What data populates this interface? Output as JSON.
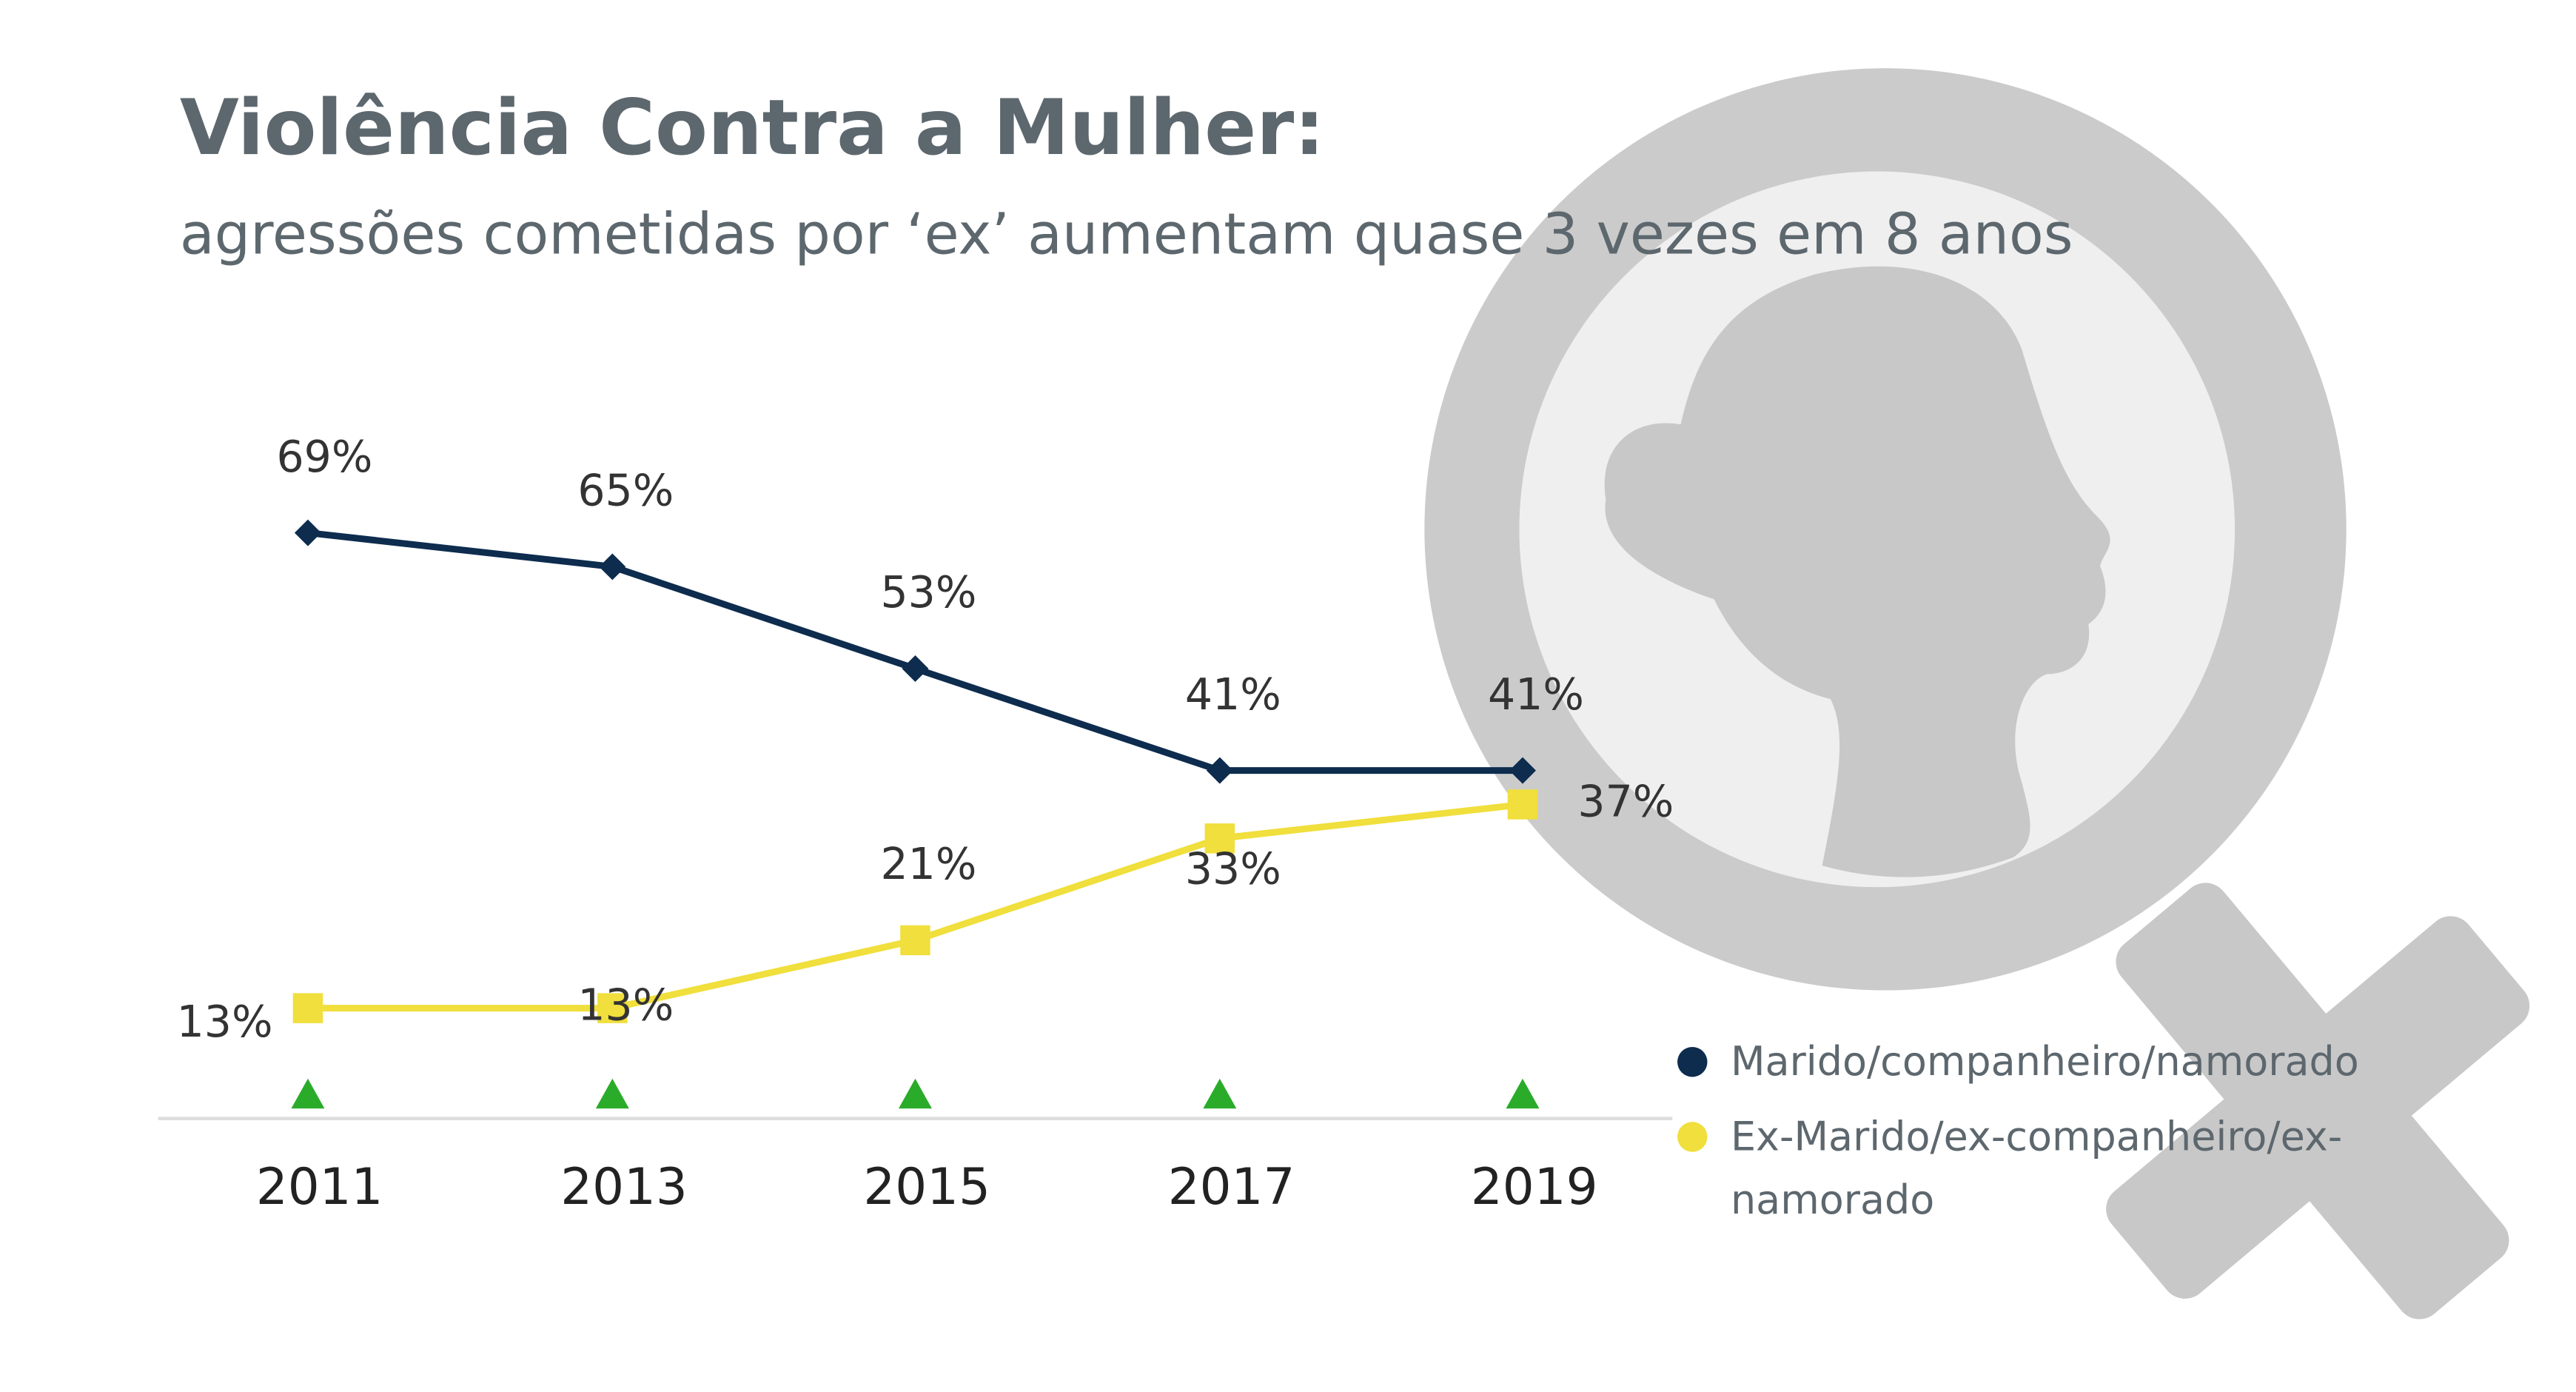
{
  "chart_data": {
    "type": "line",
    "title": "Violência Contra a Mulher:",
    "subtitle": "agressões cometidas por ‘ex’ aumentam quase 3 vezes em 8 anos",
    "categories": [
      "2011",
      "2013",
      "2015",
      "2017",
      "2019"
    ],
    "series": [
      {
        "name": "Marido/companheiro/namorado",
        "color": "#0d2c4e",
        "marker": "diamond",
        "values": [
          69,
          65,
          53,
          41,
          41
        ],
        "value_labels": [
          "69%",
          "65%",
          "53%",
          "41%",
          "41%"
        ]
      },
      {
        "name": "Ex-Marido/ex-companheiro/ex-namorado",
        "color": "#f0df3c",
        "marker": "square",
        "values": [
          13,
          13,
          21,
          33,
          37
        ],
        "value_labels": [
          "13%",
          "13%",
          "21%",
          "33%",
          "37%"
        ]
      }
    ]
  }
}
